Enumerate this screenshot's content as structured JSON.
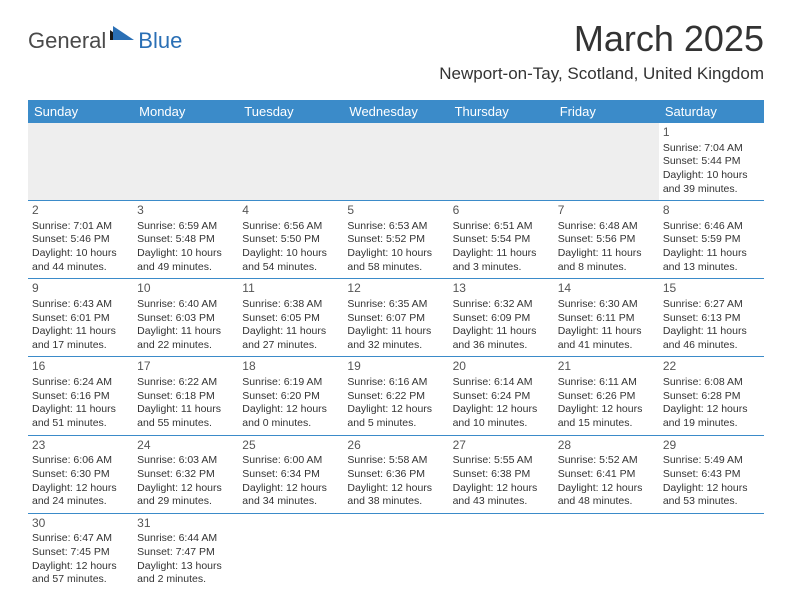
{
  "logo": {
    "general": "General",
    "blue": "Blue"
  },
  "title": "March 2025",
  "location": "Newport-on-Tay, Scotland, United Kingdom",
  "colors": {
    "header_bg": "#3b8bc9",
    "header_text": "#ffffff",
    "cell_border": "#3b8bc9",
    "empty_bg": "#eeeeee",
    "text": "#333333",
    "logo_gray": "#4a4a4a",
    "logo_blue": "#2a6fb5"
  },
  "day_headers": [
    "Sunday",
    "Monday",
    "Tuesday",
    "Wednesday",
    "Thursday",
    "Friday",
    "Saturday"
  ],
  "weeks": [
    [
      null,
      null,
      null,
      null,
      null,
      null,
      {
        "n": "1",
        "sr": "7:04 AM",
        "ss": "5:44 PM",
        "dh": "10",
        "dm": "39"
      }
    ],
    [
      {
        "n": "2",
        "sr": "7:01 AM",
        "ss": "5:46 PM",
        "dh": "10",
        "dm": "44"
      },
      {
        "n": "3",
        "sr": "6:59 AM",
        "ss": "5:48 PM",
        "dh": "10",
        "dm": "49"
      },
      {
        "n": "4",
        "sr": "6:56 AM",
        "ss": "5:50 PM",
        "dh": "10",
        "dm": "54"
      },
      {
        "n": "5",
        "sr": "6:53 AM",
        "ss": "5:52 PM",
        "dh": "10",
        "dm": "58"
      },
      {
        "n": "6",
        "sr": "6:51 AM",
        "ss": "5:54 PM",
        "dh": "11",
        "dm": "3"
      },
      {
        "n": "7",
        "sr": "6:48 AM",
        "ss": "5:56 PM",
        "dh": "11",
        "dm": "8"
      },
      {
        "n": "8",
        "sr": "6:46 AM",
        "ss": "5:59 PM",
        "dh": "11",
        "dm": "13"
      }
    ],
    [
      {
        "n": "9",
        "sr": "6:43 AM",
        "ss": "6:01 PM",
        "dh": "11",
        "dm": "17"
      },
      {
        "n": "10",
        "sr": "6:40 AM",
        "ss": "6:03 PM",
        "dh": "11",
        "dm": "22"
      },
      {
        "n": "11",
        "sr": "6:38 AM",
        "ss": "6:05 PM",
        "dh": "11",
        "dm": "27"
      },
      {
        "n": "12",
        "sr": "6:35 AM",
        "ss": "6:07 PM",
        "dh": "11",
        "dm": "32"
      },
      {
        "n": "13",
        "sr": "6:32 AM",
        "ss": "6:09 PM",
        "dh": "11",
        "dm": "36"
      },
      {
        "n": "14",
        "sr": "6:30 AM",
        "ss": "6:11 PM",
        "dh": "11",
        "dm": "41"
      },
      {
        "n": "15",
        "sr": "6:27 AM",
        "ss": "6:13 PM",
        "dh": "11",
        "dm": "46"
      }
    ],
    [
      {
        "n": "16",
        "sr": "6:24 AM",
        "ss": "6:16 PM",
        "dh": "11",
        "dm": "51"
      },
      {
        "n": "17",
        "sr": "6:22 AM",
        "ss": "6:18 PM",
        "dh": "11",
        "dm": "55"
      },
      {
        "n": "18",
        "sr": "6:19 AM",
        "ss": "6:20 PM",
        "dh": "12",
        "dm": "0"
      },
      {
        "n": "19",
        "sr": "6:16 AM",
        "ss": "6:22 PM",
        "dh": "12",
        "dm": "5"
      },
      {
        "n": "20",
        "sr": "6:14 AM",
        "ss": "6:24 PM",
        "dh": "12",
        "dm": "10"
      },
      {
        "n": "21",
        "sr": "6:11 AM",
        "ss": "6:26 PM",
        "dh": "12",
        "dm": "15"
      },
      {
        "n": "22",
        "sr": "6:08 AM",
        "ss": "6:28 PM",
        "dh": "12",
        "dm": "19"
      }
    ],
    [
      {
        "n": "23",
        "sr": "6:06 AM",
        "ss": "6:30 PM",
        "dh": "12",
        "dm": "24"
      },
      {
        "n": "24",
        "sr": "6:03 AM",
        "ss": "6:32 PM",
        "dh": "12",
        "dm": "29"
      },
      {
        "n": "25",
        "sr": "6:00 AM",
        "ss": "6:34 PM",
        "dh": "12",
        "dm": "34"
      },
      {
        "n": "26",
        "sr": "5:58 AM",
        "ss": "6:36 PM",
        "dh": "12",
        "dm": "38"
      },
      {
        "n": "27",
        "sr": "5:55 AM",
        "ss": "6:38 PM",
        "dh": "12",
        "dm": "43"
      },
      {
        "n": "28",
        "sr": "5:52 AM",
        "ss": "6:41 PM",
        "dh": "12",
        "dm": "48"
      },
      {
        "n": "29",
        "sr": "5:49 AM",
        "ss": "6:43 PM",
        "dh": "12",
        "dm": "53"
      }
    ],
    [
      {
        "n": "30",
        "sr": "6:47 AM",
        "ss": "7:45 PM",
        "dh": "12",
        "dm": "57"
      },
      {
        "n": "31",
        "sr": "6:44 AM",
        "ss": "7:47 PM",
        "dh": "13",
        "dm": "2"
      },
      null,
      null,
      null,
      null,
      null
    ]
  ]
}
